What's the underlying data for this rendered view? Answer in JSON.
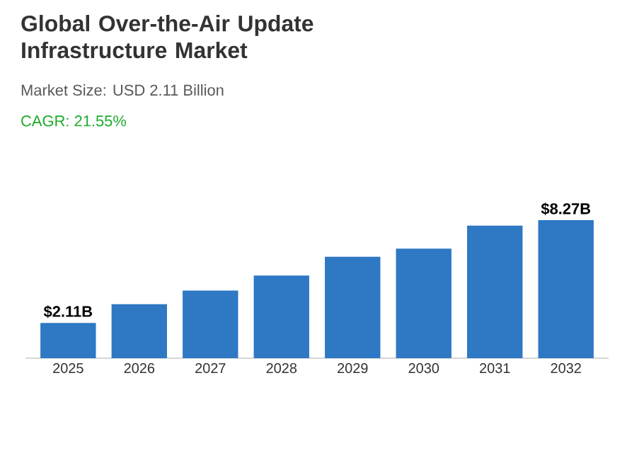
{
  "chart_data": {
    "type": "bar",
    "title": "Global Over-the-Air Update Infrastructure Market",
    "subtitle": "Market Size: USD 2.11 Billion",
    "annotations": [
      "CAGR: 21.55%"
    ],
    "categories": [
      "2025",
      "2026",
      "2027",
      "2028",
      "2029",
      "2030",
      "2031",
      "2032"
    ],
    "values": [
      2.11,
      3.24,
      4.05,
      4.95,
      6.08,
      6.57,
      7.95,
      8.27
    ],
    "value_labels": [
      "$2.11B",
      null,
      null,
      null,
      null,
      null,
      null,
      "$8.27B"
    ],
    "color": "#2e78c4"
  }
}
